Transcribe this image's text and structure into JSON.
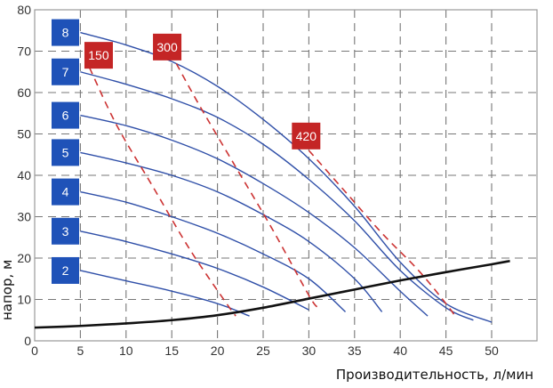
{
  "chart_data": {
    "type": "line",
    "title": "",
    "xlabel": "Производительность, л/мин",
    "ylabel": "напор, м",
    "xlim": [
      0,
      52
    ],
    "ylim": [
      0,
      80
    ],
    "x_ticks": [
      0,
      5,
      10,
      15,
      20,
      25,
      30,
      35,
      40,
      45,
      50
    ],
    "y_ticks": [
      0,
      10,
      20,
      30,
      40,
      50,
      60,
      70,
      80
    ],
    "grid": true,
    "series": [
      {
        "name": "2",
        "kind": "pump-curve",
        "color": "#2f4fa8",
        "x": [
          5,
          10,
          15,
          20,
          23.5
        ],
        "y": [
          17,
          14.5,
          12,
          9,
          6
        ]
      },
      {
        "name": "3",
        "kind": "pump-curve",
        "color": "#2f4fa8",
        "x": [
          5,
          10,
          15,
          20,
          25,
          30
        ],
        "y": [
          26.5,
          24,
          21,
          17.5,
          13,
          7.5
        ]
      },
      {
        "name": "4",
        "kind": "pump-curve",
        "color": "#2f4fa8",
        "x": [
          5,
          10,
          15,
          20,
          25,
          30,
          34
        ],
        "y": [
          36,
          33.5,
          30,
          26,
          21,
          15,
          7
        ]
      },
      {
        "name": "5",
        "kind": "pump-curve",
        "color": "#2f4fa8",
        "x": [
          5,
          10,
          15,
          20,
          25,
          30,
          35,
          38
        ],
        "y": [
          45.5,
          43,
          40,
          36,
          30.5,
          24,
          15,
          7
        ]
      },
      {
        "name": "6",
        "kind": "pump-curve",
        "color": "#2f4fa8",
        "x": [
          5,
          10,
          15,
          20,
          25,
          30,
          35,
          40,
          43
        ],
        "y": [
          54.5,
          52,
          48.5,
          44,
          38,
          31,
          22.5,
          12,
          6
        ]
      },
      {
        "name": "7",
        "kind": "pump-curve",
        "color": "#2f4fa8",
        "x": [
          5,
          10,
          15,
          20,
          25,
          30,
          35,
          40,
          45,
          48
        ],
        "y": [
          65,
          62,
          58.5,
          54,
          47.5,
          39,
          29,
          17,
          8,
          5
        ]
      },
      {
        "name": "8",
        "kind": "pump-curve",
        "color": "#2f4fa8",
        "x": [
          5,
          10,
          15,
          20,
          25,
          30,
          35,
          40,
          45,
          50
        ],
        "y": [
          74.5,
          71.5,
          67.5,
          61.5,
          53.5,
          44,
          32.5,
          19,
          9,
          4.5
        ]
      },
      {
        "name": "150",
        "kind": "efficiency-line",
        "color": "#cc3333",
        "x": [
          6,
          9,
          13,
          17,
          21,
          22
        ],
        "y": [
          66,
          52,
          37,
          22,
          9,
          6
        ]
      },
      {
        "name": "300",
        "kind": "efficiency-line",
        "color": "#cc3333",
        "x": [
          15.5,
          18,
          22,
          26,
          30,
          31
        ],
        "y": [
          67,
          57,
          42,
          27,
          11,
          8
        ]
      },
      {
        "name": "420",
        "kind": "efficiency-line",
        "color": "#cc3333",
        "x": [
          30,
          34,
          38,
          42,
          45,
          46
        ],
        "y": [
          46,
          36,
          26,
          17,
          9,
          6
        ]
      },
      {
        "name": "system",
        "kind": "system-curve",
        "color": "#111111",
        "x": [
          0,
          5,
          10,
          15,
          20,
          25,
          30,
          35,
          40,
          45,
          50,
          52
        ],
        "y": [
          3.2,
          3.6,
          4.2,
          5,
          6.2,
          8,
          10.2,
          12.4,
          14.6,
          16.6,
          18.5,
          19.3
        ]
      }
    ],
    "labels": {
      "stage_boxes": [
        {
          "text": "8",
          "y": 74.5
        },
        {
          "text": "7",
          "y": 65
        },
        {
          "text": "6",
          "y": 54.5
        },
        {
          "text": "5",
          "y": 45.5
        },
        {
          "text": "4",
          "y": 36
        },
        {
          "text": "3",
          "y": 26.5
        },
        {
          "text": "2",
          "y": 17
        }
      ],
      "efficiency_boxes": [
        {
          "text": "150",
          "x": 7,
          "y": 69
        },
        {
          "text": "300",
          "x": 14.5,
          "y": 71
        },
        {
          "text": "420",
          "x": 29.7,
          "y": 49.5
        }
      ]
    }
  }
}
